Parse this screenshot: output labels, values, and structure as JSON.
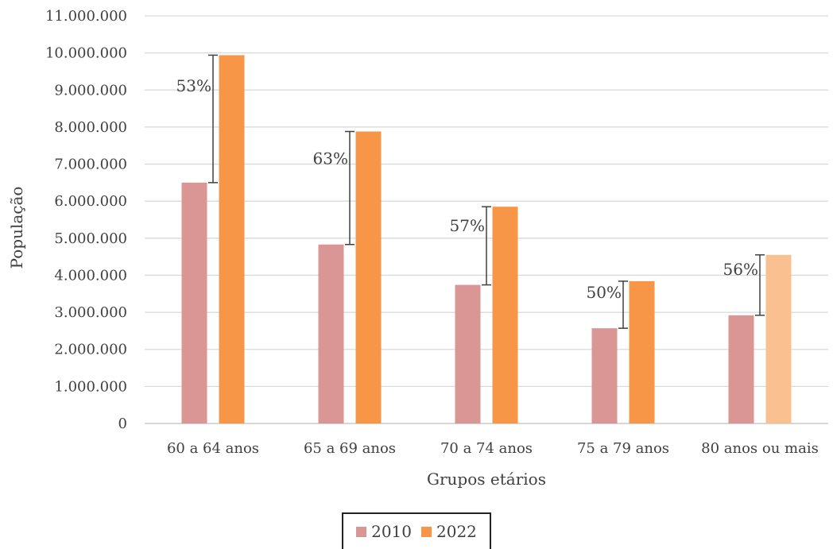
{
  "chart_data": {
    "type": "bar",
    "title": "",
    "xlabel": "Grupos etários",
    "ylabel": "População",
    "categories": [
      "60 a 64 anos",
      "65 a 69 anos",
      "70 a 74 anos",
      "75 a 79 anos",
      "80 anos ou mais"
    ],
    "series": [
      {
        "name": "2010",
        "values": [
          6500000,
          4830000,
          3740000,
          2570000,
          2920000
        ]
      },
      {
        "name": "2022",
        "values": [
          9940000,
          7880000,
          5850000,
          3840000,
          4550000
        ]
      }
    ],
    "growth_labels": [
      "53%",
      "63%",
      "57%",
      "50%",
      "56%"
    ],
    "ylim": [
      0,
      11000000
    ],
    "yticks": [
      0,
      1000000,
      2000000,
      3000000,
      4000000,
      5000000,
      6000000,
      7000000,
      8000000,
      9000000,
      10000000,
      11000000
    ],
    "ytick_labels": [
      "0",
      "1.000.000",
      "2.000.000",
      "3.000.000",
      "4.000.000",
      "5.000.000",
      "6.000.000",
      "7.000.000",
      "8.000.000",
      "9.000.000",
      "10.000.000",
      "11.000.000"
    ],
    "grid": true,
    "legend_position": "bottom",
    "colors": {
      "2010": "#d99694",
      "2022": "#f79646",
      "2022_last": "#fac090"
    }
  },
  "legend": {
    "items": [
      "2010",
      "2022"
    ]
  }
}
